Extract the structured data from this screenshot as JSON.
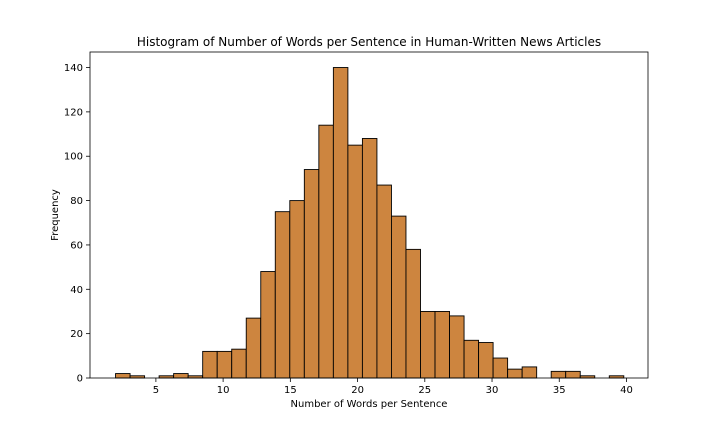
{
  "chart_data": {
    "type": "bar",
    "subtype": "histogram",
    "title": "Histogram of Number of Words per Sentence in Human-Written News Articles",
    "xlabel": "Number of Words per Sentence",
    "ylabel": "Frequency",
    "xlim": [
      0.1,
      41.6
    ],
    "ylim": [
      0,
      147
    ],
    "xticks": [
      5,
      10,
      15,
      20,
      25,
      30,
      35,
      40
    ],
    "yticks": [
      0,
      20,
      40,
      60,
      80,
      100,
      120,
      140
    ],
    "bin_edges": [
      2,
      3.08,
      4.16,
      5.24,
      6.32,
      7.4,
      8.48,
      9.56,
      10.64,
      11.72,
      12.8,
      13.88,
      14.96,
      16.04,
      17.12,
      18.2,
      19.28,
      20.36,
      21.44,
      22.52,
      23.6,
      24.68,
      25.76,
      26.84,
      27.92,
      29,
      30.08,
      31.16,
      32.24,
      33.32,
      34.4,
      35.48,
      36.56,
      37.64,
      38.72,
      39.8
    ],
    "values": [
      2,
      1,
      0,
      1,
      2,
      1,
      12,
      12,
      13,
      27,
      48,
      75,
      80,
      94,
      114,
      140,
      105,
      108,
      87,
      73,
      58,
      30,
      30,
      28,
      17,
      16,
      9,
      4,
      5,
      0,
      3,
      3,
      1,
      0,
      1
    ],
    "bar_color": "#cd853f",
    "edge_color": "#000000",
    "grid": false,
    "legend": "none"
  }
}
